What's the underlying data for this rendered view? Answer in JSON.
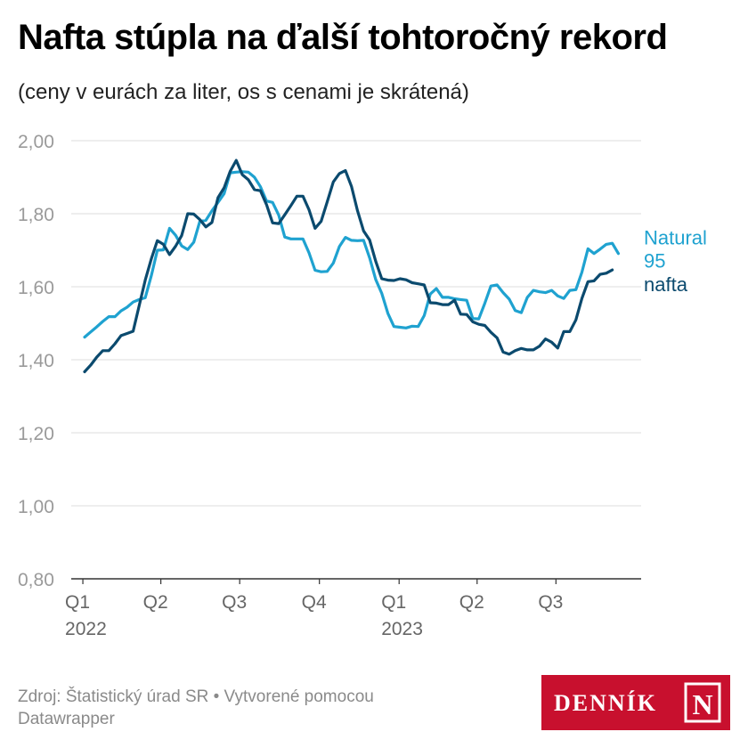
{
  "header": {
    "title": "Nafta stúpla na ďalší tohtoročný rekord",
    "subtitle": "(ceny v eurách za liter, os s cenami je skrátená)"
  },
  "footer": {
    "source": "Zdroj: Štatistický úrad SR • Vytvorené pomocou Datawrapper"
  },
  "logo": {
    "text": "DENNÍK",
    "letter": "N",
    "background_color": "#c8102e"
  },
  "colors": {
    "natural95": "#1fa2d0",
    "nafta": "#0b4a6e",
    "grid": "#dddddd",
    "tick_label": "#9a9a9a",
    "x_label": "#666666"
  },
  "chart_data": {
    "type": "line",
    "title": "Nafta stúpla na ďalší tohtoročný rekord",
    "subtitle": "(ceny v eurách za liter, os s cenami je skrátená)",
    "xlabel": "",
    "ylabel": "",
    "ylim": [
      0.8,
      2.0
    ],
    "y_ticks": [
      "2,00",
      "1,80",
      "1,60",
      "1,40",
      "1,20",
      "1,00",
      "0,80"
    ],
    "y_tick_values": [
      2.0,
      1.8,
      1.6,
      1.4,
      1.2,
      1.0,
      0.8
    ],
    "grid": true,
    "legend": "inline labels at right end of lines",
    "x_range": [
      "2022-01-03",
      "2023-09-25"
    ],
    "x_ticks": [
      {
        "date": "2022-01-01",
        "label": "Q1",
        "year": "2022"
      },
      {
        "date": "2022-04-01",
        "label": "Q2",
        "year": ""
      },
      {
        "date": "2022-07-01",
        "label": "Q3",
        "year": ""
      },
      {
        "date": "2022-10-01",
        "label": "Q4",
        "year": ""
      },
      {
        "date": "2023-01-01",
        "label": "Q1",
        "year": "2023"
      },
      {
        "date": "2023-04-01",
        "label": "Q2",
        "year": ""
      },
      {
        "date": "2023-07-01",
        "label": "Q3",
        "year": ""
      }
    ],
    "series": [
      {
        "name": "Natural 95",
        "label_lines": [
          "Natural",
          "95"
        ],
        "color": "#1fa2d0",
        "points": [
          [
            "2022-01-03",
            1.462
          ],
          [
            "2022-01-10",
            1.476
          ],
          [
            "2022-01-17",
            1.49
          ],
          [
            "2022-01-24",
            1.505
          ],
          [
            "2022-01-31",
            1.518
          ],
          [
            "2022-02-07",
            1.518
          ],
          [
            "2022-02-14",
            1.534
          ],
          [
            "2022-02-21",
            1.544
          ],
          [
            "2022-02-28",
            1.558
          ],
          [
            "2022-03-07",
            1.565
          ],
          [
            "2022-03-14",
            1.57
          ],
          [
            "2022-03-21",
            1.63
          ],
          [
            "2022-03-28",
            1.7
          ],
          [
            "2022-04-04",
            1.701
          ],
          [
            "2022-04-11",
            1.76
          ],
          [
            "2022-04-18",
            1.741
          ],
          [
            "2022-04-25",
            1.712
          ],
          [
            "2022-05-02",
            1.702
          ],
          [
            "2022-05-09",
            1.722
          ],
          [
            "2022-05-16",
            1.779
          ],
          [
            "2022-05-23",
            1.782
          ],
          [
            "2022-05-30",
            1.808
          ],
          [
            "2022-06-06",
            1.831
          ],
          [
            "2022-06-13",
            1.855
          ],
          [
            "2022-06-20",
            1.912
          ],
          [
            "2022-06-27",
            1.914
          ],
          [
            "2022-07-04",
            1.915
          ],
          [
            "2022-07-11",
            1.914
          ],
          [
            "2022-07-18",
            1.9
          ],
          [
            "2022-07-25",
            1.874
          ],
          [
            "2022-08-01",
            1.835
          ],
          [
            "2022-08-08",
            1.831
          ],
          [
            "2022-08-15",
            1.796
          ],
          [
            "2022-08-22",
            1.736
          ],
          [
            "2022-08-29",
            1.731
          ],
          [
            "2022-09-05",
            1.731
          ],
          [
            "2022-09-12",
            1.731
          ],
          [
            "2022-09-19",
            1.693
          ],
          [
            "2022-09-26",
            1.645
          ],
          [
            "2022-10-03",
            1.641
          ],
          [
            "2022-10-10",
            1.642
          ],
          [
            "2022-10-17",
            1.665
          ],
          [
            "2022-10-24",
            1.71
          ],
          [
            "2022-10-31",
            1.735
          ],
          [
            "2022-11-07",
            1.727
          ],
          [
            "2022-11-14",
            1.726
          ],
          [
            "2022-11-21",
            1.727
          ],
          [
            "2022-11-28",
            1.679
          ],
          [
            "2022-12-05",
            1.62
          ],
          [
            "2022-12-12",
            1.582
          ],
          [
            "2022-12-19",
            1.527
          ],
          [
            "2022-12-26",
            1.491
          ],
          [
            "2023-01-02",
            1.489
          ],
          [
            "2023-01-09",
            1.487
          ],
          [
            "2023-01-16",
            1.492
          ],
          [
            "2023-01-23",
            1.491
          ],
          [
            "2023-01-30",
            1.521
          ],
          [
            "2023-02-06",
            1.58
          ],
          [
            "2023-02-13",
            1.595
          ],
          [
            "2023-02-20",
            1.571
          ],
          [
            "2023-02-27",
            1.571
          ],
          [
            "2023-03-06",
            1.567
          ],
          [
            "2023-03-13",
            1.565
          ],
          [
            "2023-03-20",
            1.563
          ],
          [
            "2023-03-27",
            1.513
          ],
          [
            "2023-04-03",
            1.512
          ],
          [
            "2023-04-10",
            1.555
          ],
          [
            "2023-04-17",
            1.602
          ],
          [
            "2023-04-24",
            1.605
          ],
          [
            "2023-05-01",
            1.584
          ],
          [
            "2023-05-08",
            1.566
          ],
          [
            "2023-05-15",
            1.535
          ],
          [
            "2023-05-22",
            1.529
          ],
          [
            "2023-05-29",
            1.571
          ],
          [
            "2023-06-05",
            1.59
          ],
          [
            "2023-06-12",
            1.586
          ],
          [
            "2023-06-19",
            1.584
          ],
          [
            "2023-06-26",
            1.59
          ],
          [
            "2023-07-03",
            1.575
          ],
          [
            "2023-07-10",
            1.568
          ],
          [
            "2023-07-17",
            1.59
          ],
          [
            "2023-07-24",
            1.592
          ],
          [
            "2023-07-31",
            1.64
          ],
          [
            "2023-08-07",
            1.704
          ],
          [
            "2023-08-14",
            1.691
          ],
          [
            "2023-08-21",
            1.703
          ],
          [
            "2023-08-28",
            1.716
          ],
          [
            "2023-09-04",
            1.719
          ],
          [
            "2023-09-11",
            1.691
          ]
        ]
      },
      {
        "name": "nafta",
        "label_lines": [
          "nafta"
        ],
        "color": "#0b4a6e",
        "points": [
          [
            "2022-01-03",
            1.367
          ],
          [
            "2022-01-10",
            1.385
          ],
          [
            "2022-01-17",
            1.407
          ],
          [
            "2022-01-24",
            1.425
          ],
          [
            "2022-01-31",
            1.425
          ],
          [
            "2022-02-07",
            1.444
          ],
          [
            "2022-02-14",
            1.466
          ],
          [
            "2022-02-21",
            1.472
          ],
          [
            "2022-02-28",
            1.478
          ],
          [
            "2022-03-07",
            1.548
          ],
          [
            "2022-03-14",
            1.618
          ],
          [
            "2022-03-21",
            1.676
          ],
          [
            "2022-03-28",
            1.726
          ],
          [
            "2022-04-04",
            1.716
          ],
          [
            "2022-04-11",
            1.688
          ],
          [
            "2022-04-18",
            1.711
          ],
          [
            "2022-04-25",
            1.74
          ],
          [
            "2022-05-02",
            1.8
          ],
          [
            "2022-05-09",
            1.799
          ],
          [
            "2022-05-16",
            1.784
          ],
          [
            "2022-05-23",
            1.764
          ],
          [
            "2022-05-30",
            1.776
          ],
          [
            "2022-06-06",
            1.844
          ],
          [
            "2022-06-13",
            1.871
          ],
          [
            "2022-06-20",
            1.916
          ],
          [
            "2022-06-27",
            1.946
          ],
          [
            "2022-07-04",
            1.907
          ],
          [
            "2022-07-11",
            1.893
          ],
          [
            "2022-07-18",
            1.866
          ],
          [
            "2022-07-25",
            1.863
          ],
          [
            "2022-08-01",
            1.825
          ],
          [
            "2022-08-08",
            1.775
          ],
          [
            "2022-08-15",
            1.773
          ],
          [
            "2022-08-22",
            1.797
          ],
          [
            "2022-08-29",
            1.822
          ],
          [
            "2022-09-05",
            1.848
          ],
          [
            "2022-09-12",
            1.848
          ],
          [
            "2022-09-19",
            1.811
          ],
          [
            "2022-09-26",
            1.76
          ],
          [
            "2022-10-03",
            1.779
          ],
          [
            "2022-10-10",
            1.832
          ],
          [
            "2022-10-17",
            1.887
          ],
          [
            "2022-10-24",
            1.91
          ],
          [
            "2022-10-31",
            1.918
          ],
          [
            "2022-11-07",
            1.875
          ],
          [
            "2022-11-14",
            1.808
          ],
          [
            "2022-11-21",
            1.753
          ],
          [
            "2022-11-28",
            1.728
          ],
          [
            "2022-12-05",
            1.67
          ],
          [
            "2022-12-12",
            1.622
          ],
          [
            "2022-12-19",
            1.618
          ],
          [
            "2022-12-26",
            1.617
          ],
          [
            "2023-01-02",
            1.622
          ],
          [
            "2023-01-09",
            1.619
          ],
          [
            "2023-01-16",
            1.611
          ],
          [
            "2023-01-23",
            1.608
          ],
          [
            "2023-01-30",
            1.605
          ],
          [
            "2023-02-06",
            1.556
          ],
          [
            "2023-02-13",
            1.555
          ],
          [
            "2023-02-20",
            1.551
          ],
          [
            "2023-02-27",
            1.551
          ],
          [
            "2023-03-06",
            1.563
          ],
          [
            "2023-03-13",
            1.525
          ],
          [
            "2023-03-20",
            1.524
          ],
          [
            "2023-03-27",
            1.504
          ],
          [
            "2023-04-03",
            1.497
          ],
          [
            "2023-04-10",
            1.494
          ],
          [
            "2023-04-17",
            1.475
          ],
          [
            "2023-04-24",
            1.46
          ],
          [
            "2023-05-01",
            1.421
          ],
          [
            "2023-05-08",
            1.415
          ],
          [
            "2023-05-15",
            1.425
          ],
          [
            "2023-05-22",
            1.431
          ],
          [
            "2023-05-29",
            1.427
          ],
          [
            "2023-06-05",
            1.427
          ],
          [
            "2023-06-12",
            1.437
          ],
          [
            "2023-06-19",
            1.457
          ],
          [
            "2023-06-26",
            1.448
          ],
          [
            "2023-07-03",
            1.432
          ],
          [
            "2023-07-10",
            1.477
          ],
          [
            "2023-07-17",
            1.477
          ],
          [
            "2023-07-24",
            1.509
          ],
          [
            "2023-07-31",
            1.568
          ],
          [
            "2023-08-07",
            1.614
          ],
          [
            "2023-08-14",
            1.616
          ],
          [
            "2023-08-21",
            1.634
          ],
          [
            "2023-08-28",
            1.637
          ],
          [
            "2023-09-04",
            1.646
          ]
        ]
      }
    ]
  }
}
